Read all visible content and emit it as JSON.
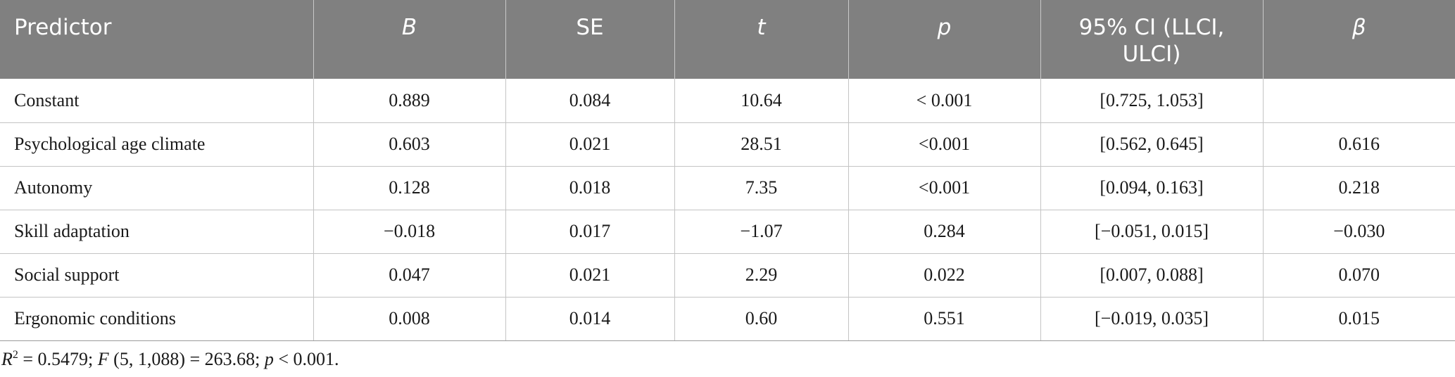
{
  "table": {
    "headers": [
      "Predictor",
      "B",
      "SE",
      "t",
      "p",
      "95% CI (LLCI, ULCI)",
      "β"
    ],
    "rows": [
      [
        "Constant",
        "0.889",
        "0.084",
        "10.64",
        "< 0.001",
        "[0.725, 1.053]",
        ""
      ],
      [
        "Psychological age climate",
        "0.603",
        "0.021",
        "28.51",
        "<0.001",
        "[0.562, 0.645]",
        "0.616"
      ],
      [
        "Autonomy",
        "0.128",
        "0.018",
        "7.35",
        "<0.001",
        "[0.094, 0.163]",
        "0.218"
      ],
      [
        "Skill adaptation",
        "−0.018",
        "0.017",
        "−1.07",
        "0.284",
        "[−0.051, 0.015]",
        "−0.030"
      ],
      [
        "Social support",
        "0.047",
        "0.021",
        "2.29",
        "0.022",
        "[0.007, 0.088]",
        "0.070"
      ],
      [
        "Ergonomic conditions",
        "0.008",
        "0.014",
        "0.60",
        "0.551",
        "[−0.019, 0.035]",
        "0.015"
      ]
    ]
  },
  "footnote": {
    "r_symbol": "R",
    "r_sup": "2",
    "r_value": " = 0.5479; ",
    "f_symbol": "F",
    "f_value": " (5, 1,088) = 263.68; ",
    "p_symbol": "p",
    "p_value": " < 0.001."
  },
  "colors": {
    "header_bg": "#808080",
    "header_text": "#ffffff",
    "grid": "#c4c4c4"
  }
}
